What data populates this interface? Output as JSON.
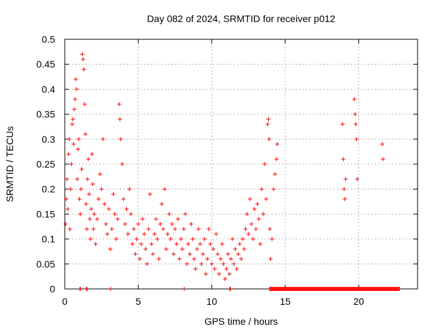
{
  "chart_data": {
    "type": "scatter",
    "title": "Day 082 of 2024, SRMTID for receiver p012",
    "xlabel": "GPS time / hours",
    "ylabel": "SRMTID / TECUs",
    "xlim": [
      0,
      24
    ],
    "ylim": [
      0,
      0.5
    ],
    "x_ticks": [
      0,
      5,
      10,
      15,
      20
    ],
    "x_tick_labels": [
      "0",
      "5",
      "10",
      "15",
      "20"
    ],
    "y_ticks": [
      0,
      0.05,
      0.1,
      0.15,
      0.2,
      0.25,
      0.3,
      0.35,
      0.4,
      0.45,
      0.5
    ],
    "y_tick_labels": [
      "0",
      "0.05",
      "0.1",
      "0.15",
      "0.2",
      "0.25",
      "0.3",
      "0.35",
      "0.4",
      "0.45",
      "0.5"
    ],
    "grid": true,
    "marker": "+",
    "series_color": "#ff0000",
    "series": [
      {
        "name": "SRMTID",
        "points": [
          [
            0.05,
            0.13
          ],
          [
            0.1,
            0.18
          ],
          [
            0.15,
            0.22
          ],
          [
            0.2,
            0.16
          ],
          [
            0.25,
            0.27
          ],
          [
            0.3,
            0.3
          ],
          [
            0.35,
            0.12
          ],
          [
            0.4,
            0.2
          ],
          [
            0.45,
            0.25
          ],
          [
            0.5,
            0.33
          ],
          [
            0.55,
            0.34
          ],
          [
            0.6,
            0.29
          ],
          [
            0.65,
            0.36
          ],
          [
            0.7,
            0.38
          ],
          [
            0.75,
            0.42
          ],
          [
            0.8,
            0.4
          ],
          [
            0.85,
            0.22
          ],
          [
            0.9,
            0.28
          ],
          [
            0.95,
            0.3
          ],
          [
            1.0,
            0.18
          ],
          [
            1.05,
            0.15
          ],
          [
            1.1,
            0.2
          ],
          [
            1.15,
            0.24
          ],
          [
            1.2,
            0.47
          ],
          [
            1.25,
            0.46
          ],
          [
            1.3,
            0.44
          ],
          [
            1.35,
            0.37
          ],
          [
            1.4,
            0.31
          ],
          [
            1.45,
            0.17
          ],
          [
            1.5,
            0.12
          ],
          [
            1.55,
            0.22
          ],
          [
            1.6,
            0.26
          ],
          [
            1.65,
            0.19
          ],
          [
            1.7,
            0.14
          ],
          [
            1.75,
            0.1
          ],
          [
            1.8,
            0.16
          ],
          [
            1.85,
            0.27
          ],
          [
            1.9,
            0.21
          ],
          [
            1.95,
            0.12
          ],
          [
            2.0,
            0.15
          ],
          [
            2.1,
            0.09
          ],
          [
            2.2,
            0.14
          ],
          [
            2.3,
            0.18
          ],
          [
            2.4,
            0.23
          ],
          [
            2.5,
            0.2
          ],
          [
            2.6,
            0.3
          ],
          [
            2.7,
            0.17
          ],
          [
            2.8,
            0.13
          ],
          [
            2.9,
            0.11
          ],
          [
            3.0,
            0.16
          ],
          [
            3.1,
            0.08
          ],
          [
            3.2,
            0.12
          ],
          [
            3.3,
            0.19
          ],
          [
            3.4,
            0.15
          ],
          [
            3.5,
            0.1
          ],
          [
            3.6,
            0.14
          ],
          [
            3.7,
            0.37
          ],
          [
            3.75,
            0.34
          ],
          [
            3.8,
            0.3
          ],
          [
            3.9,
            0.25
          ],
          [
            4.0,
            0.18
          ],
          [
            4.1,
            0.13
          ],
          [
            4.2,
            0.16
          ],
          [
            4.3,
            0.11
          ],
          [
            4.4,
            0.2
          ],
          [
            4.5,
            0.15
          ],
          [
            4.6,
            0.09
          ],
          [
            4.7,
            0.12
          ],
          [
            4.8,
            0.07
          ],
          [
            4.9,
            0.1
          ],
          [
            5.0,
            0.13
          ],
          [
            5.1,
            0.06
          ],
          [
            5.2,
            0.09
          ],
          [
            5.3,
            0.14
          ],
          [
            5.4,
            0.11
          ],
          [
            5.5,
            0.08
          ],
          [
            5.6,
            0.05
          ],
          [
            5.7,
            0.12
          ],
          [
            5.8,
            0.19
          ],
          [
            5.9,
            0.09
          ],
          [
            6.0,
            0.07
          ],
          [
            6.1,
            0.11
          ],
          [
            6.2,
            0.14
          ],
          [
            6.3,
            0.1
          ],
          [
            6.4,
            0.06
          ],
          [
            6.5,
            0.13
          ],
          [
            6.6,
            0.17
          ],
          [
            6.7,
            0.12
          ],
          [
            6.8,
            0.2
          ],
          [
            6.9,
            0.08
          ],
          [
            7.0,
            0.11
          ],
          [
            7.1,
            0.15
          ],
          [
            7.2,
            0.1
          ],
          [
            7.3,
            0.13
          ],
          [
            7.4,
            0.07
          ],
          [
            7.5,
            0.12
          ],
          [
            7.6,
            0.09
          ],
          [
            7.7,
            0.14
          ],
          [
            7.8,
            0.06
          ],
          [
            7.9,
            0.1
          ],
          [
            8.0,
            0.08
          ],
          [
            8.1,
            0.12
          ],
          [
            8.2,
            0.15
          ],
          [
            8.3,
            0.05
          ],
          [
            8.4,
            0.09
          ],
          [
            8.5,
            0.07
          ],
          [
            8.6,
            0.13
          ],
          [
            8.7,
            0.1
          ],
          [
            8.8,
            0.06
          ],
          [
            8.9,
            0.04
          ],
          [
            9.0,
            0.08
          ],
          [
            9.1,
            0.12
          ],
          [
            9.2,
            0.09
          ],
          [
            9.3,
            0.05
          ],
          [
            9.4,
            0.07
          ],
          [
            9.5,
            0.1
          ],
          [
            9.6,
            0.03
          ],
          [
            9.7,
            0.06
          ],
          [
            9.8,
            0.12
          ],
          [
            9.9,
            0.09
          ],
          [
            10.0,
            0.05
          ],
          [
            10.1,
            0.08
          ],
          [
            10.2,
            0.04
          ],
          [
            10.3,
            0.11
          ],
          [
            10.4,
            0.07
          ],
          [
            10.5,
            0.03
          ],
          [
            10.6,
            0.06
          ],
          [
            10.7,
            0.09
          ],
          [
            10.8,
            0.05
          ],
          [
            10.9,
            0.02
          ],
          [
            11.0,
            0.04
          ],
          [
            11.1,
            0.07
          ],
          [
            11.2,
            0.03
          ],
          [
            11.3,
            0.06
          ],
          [
            11.4,
            0.1
          ],
          [
            11.5,
            0.05
          ],
          [
            11.6,
            0.08
          ],
          [
            11.7,
            0.04
          ],
          [
            11.8,
            0.07
          ],
          [
            11.9,
            0.09
          ],
          [
            12.0,
            0.06
          ],
          [
            12.1,
            0.1
          ],
          [
            12.2,
            0.08
          ],
          [
            12.3,
            0.12
          ],
          [
            12.4,
            0.15
          ],
          [
            12.5,
            0.11
          ],
          [
            12.6,
            0.18
          ],
          [
            12.7,
            0.13
          ],
          [
            12.8,
            0.1
          ],
          [
            12.9,
            0.16
          ],
          [
            13.0,
            0.12
          ],
          [
            13.1,
            0.17
          ],
          [
            13.2,
            0.14
          ],
          [
            13.3,
            0.09
          ],
          [
            13.4,
            0.2
          ],
          [
            13.5,
            0.15
          ],
          [
            13.6,
            0.25
          ],
          [
            13.7,
            0.18
          ],
          [
            13.8,
            0.33
          ],
          [
            13.85,
            0.34
          ],
          [
            13.9,
            0.3
          ],
          [
            13.95,
            0.12
          ],
          [
            14.0,
            0.06
          ],
          [
            14.1,
            0.1
          ],
          [
            14.2,
            0.2
          ],
          [
            14.3,
            0.23
          ],
          [
            14.4,
            0.26
          ],
          [
            14.45,
            0.29
          ],
          [
            18.9,
            0.33
          ],
          [
            18.95,
            0.26
          ],
          [
            19.0,
            0.2
          ],
          [
            19.05,
            0.18
          ],
          [
            19.1,
            0.22
          ],
          [
            19.7,
            0.38
          ],
          [
            19.75,
            0.35
          ],
          [
            19.8,
            0.33
          ],
          [
            19.85,
            0.3
          ],
          [
            19.9,
            0.22
          ],
          [
            21.6,
            0.29
          ],
          [
            21.65,
            0.26
          ]
        ]
      }
    ],
    "zero_band_segments": [
      [
        1.0,
        1.1
      ],
      [
        1.45,
        1.55
      ],
      [
        3.1,
        3.15
      ],
      [
        8.1,
        8.15
      ],
      [
        11.2,
        11.3
      ],
      [
        13.9,
        22.8
      ]
    ]
  }
}
